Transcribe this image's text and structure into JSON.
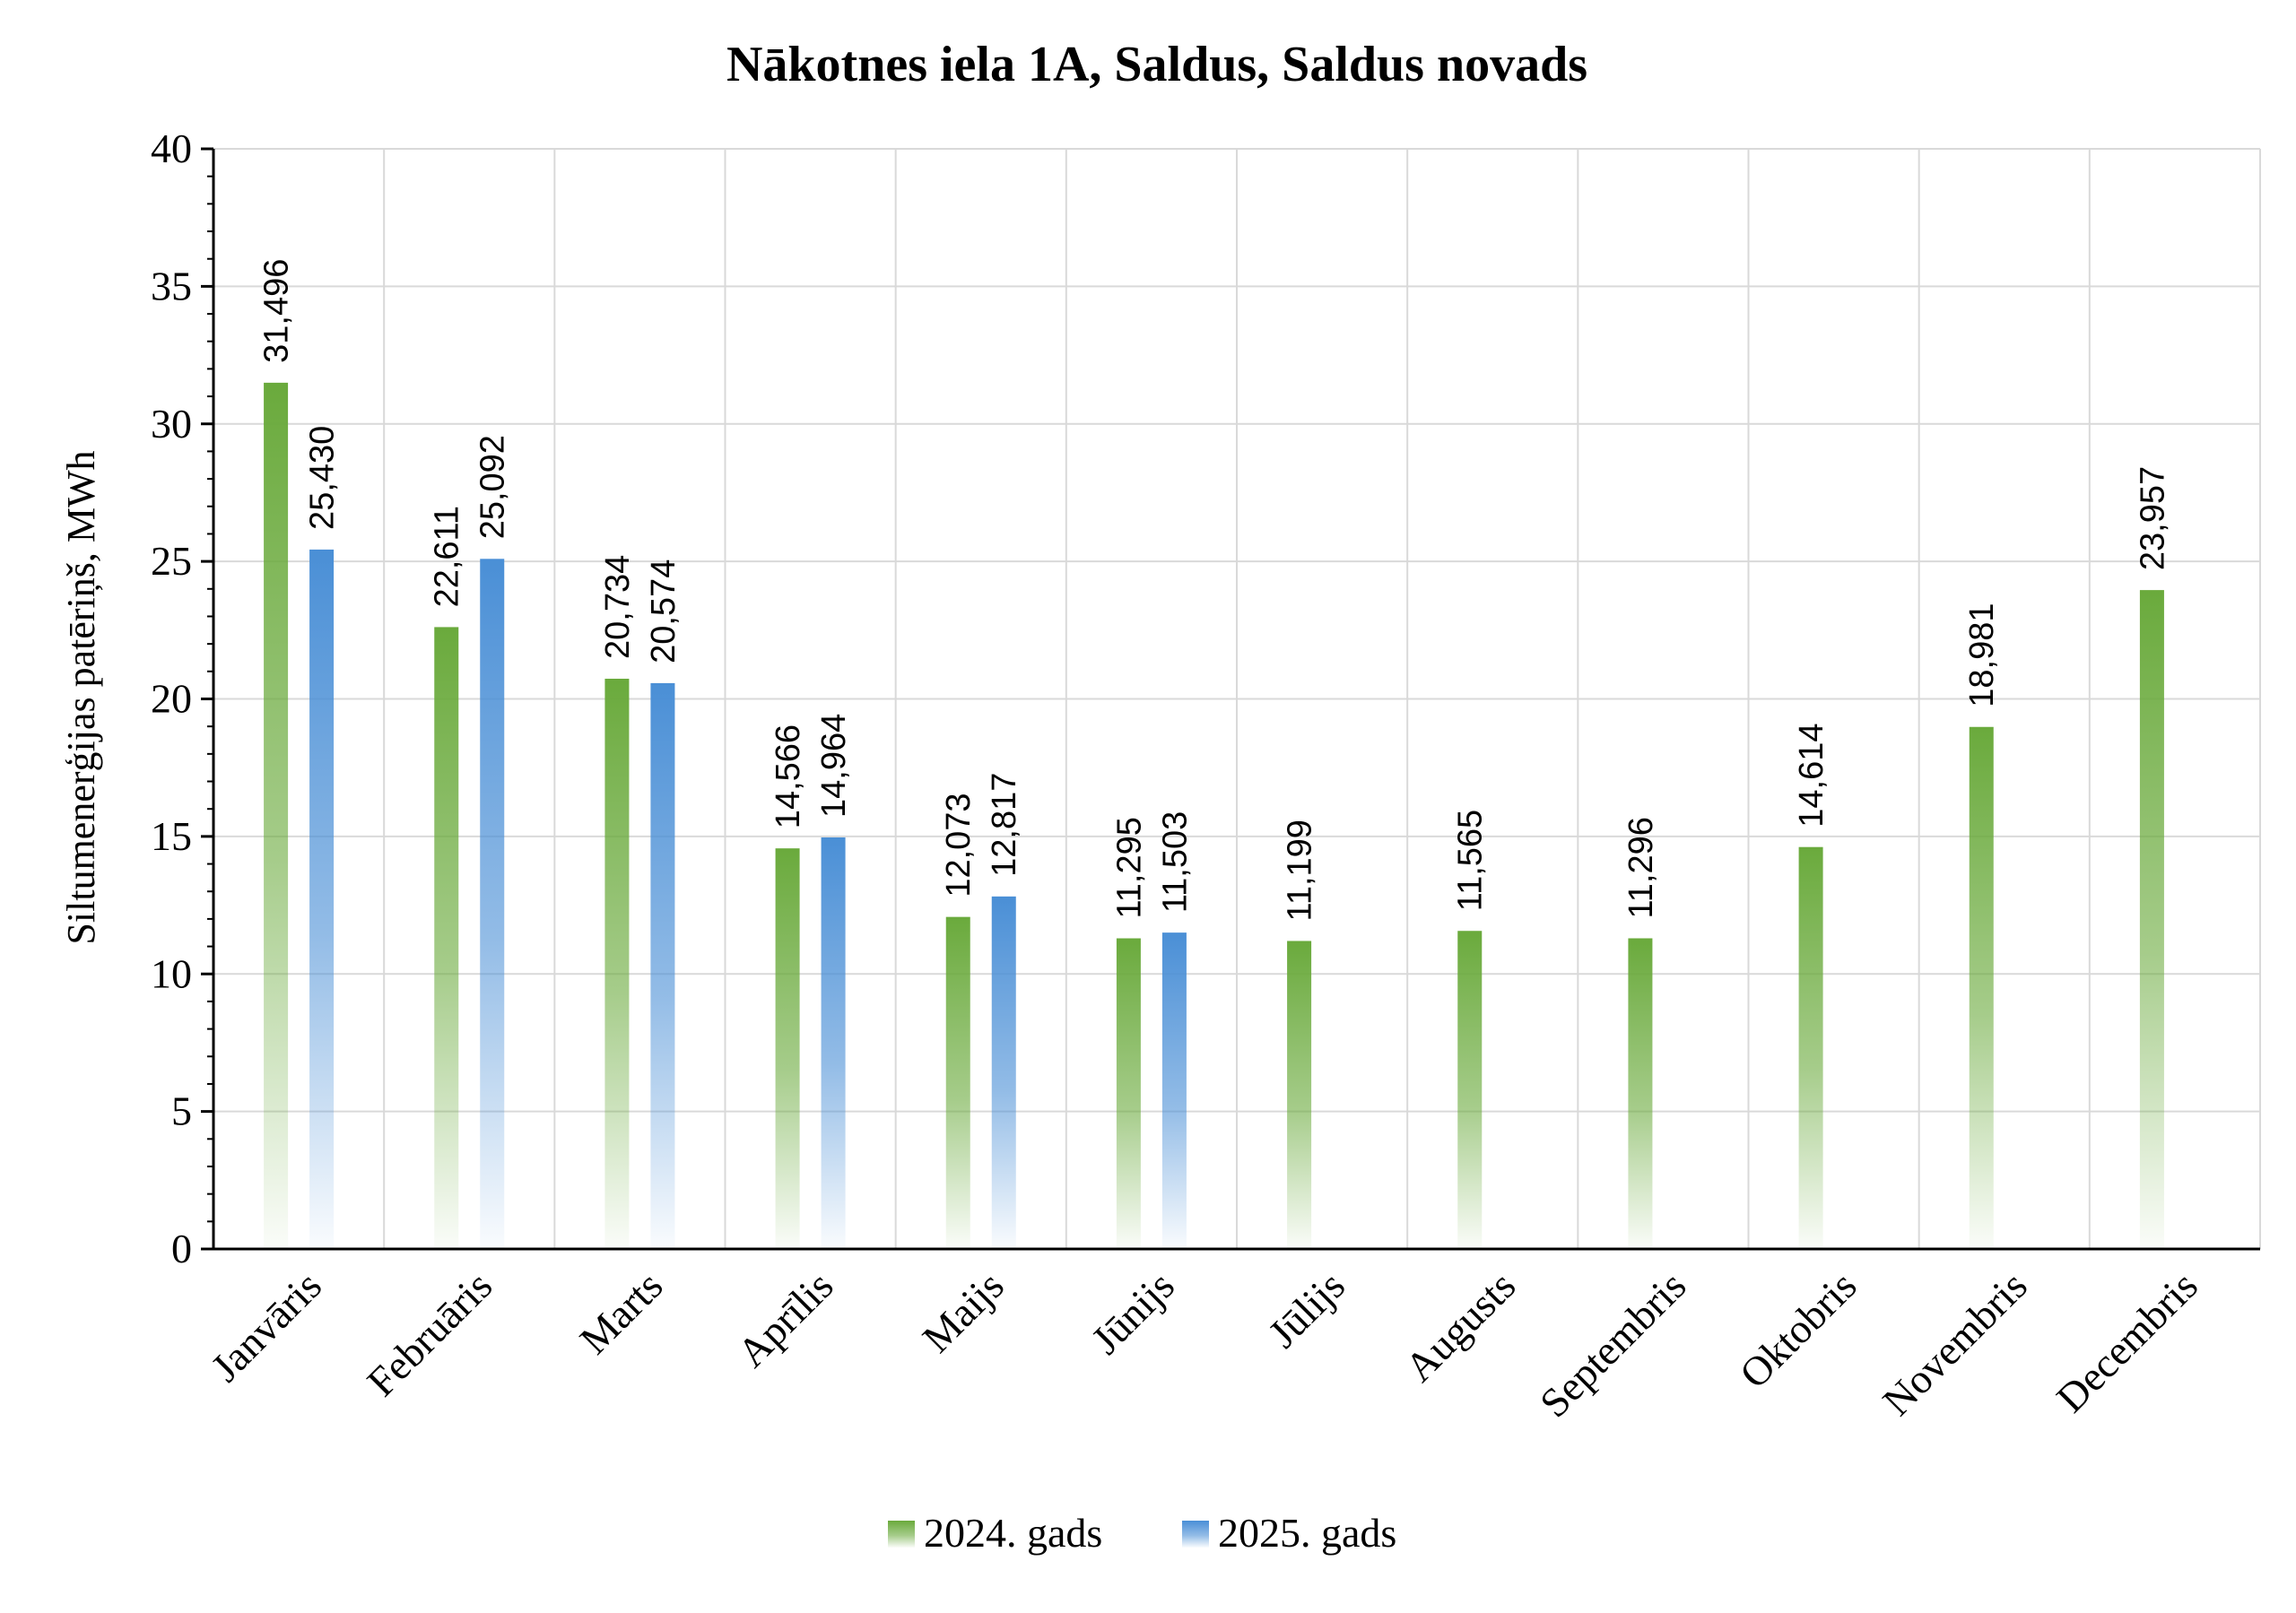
{
  "chart_data": {
    "type": "bar",
    "title": "Nākotnes iela 1A, Saldus, Saldus novads",
    "xlabel": "",
    "ylabel": "Siltumenerģijas patēriņš, MWh",
    "ylim": [
      0,
      40
    ],
    "yticks": [
      0,
      5,
      10,
      15,
      20,
      25,
      30,
      35,
      40
    ],
    "grid": true,
    "legend_position": "bottom",
    "categories": [
      "Janvāris",
      "Februāris",
      "Marts",
      "Aprīlis",
      "Maijs",
      "Jūnijs",
      "Jūlijs",
      "Augusts",
      "Septembris",
      "Oktobris",
      "Novembris",
      "Decembris"
    ],
    "series": [
      {
        "name": "2024. gads",
        "color": "#6aaa3c",
        "values": [
          31.496,
          22.611,
          20.734,
          14.566,
          12.073,
          11.295,
          11.199,
          11.565,
          11.296,
          14.614,
          18.981,
          23.957
        ],
        "labels": [
          "31,496",
          "22,611",
          "20,734",
          "14,566",
          "12,073",
          "11,295",
          "11,199",
          "11,565",
          "11,296",
          "14,614",
          "18,981",
          "23,957"
        ]
      },
      {
        "name": "2025. gads",
        "color": "#4a8fd6",
        "values": [
          25.43,
          25.092,
          20.574,
          14.964,
          12.817,
          11.503,
          null,
          null,
          null,
          null,
          null,
          null
        ],
        "labels": [
          "25,430",
          "25,092",
          "20,574",
          "14,964",
          "12,817",
          "11,503",
          null,
          null,
          null,
          null,
          null,
          null
        ]
      }
    ]
  }
}
